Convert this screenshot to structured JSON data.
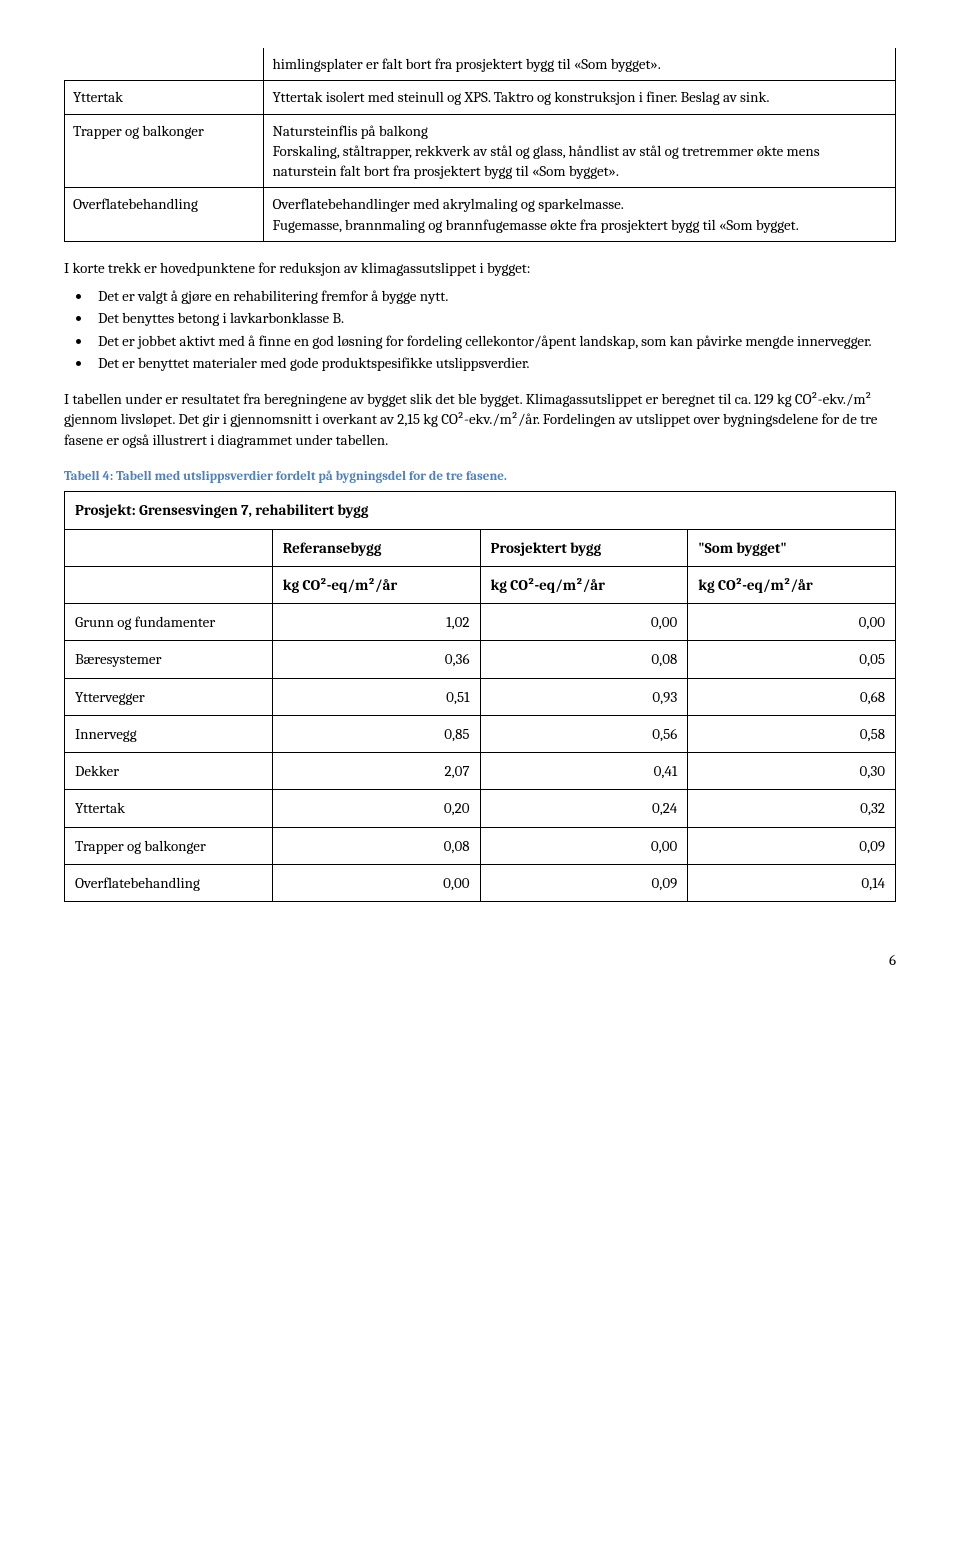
{
  "topTable": {
    "row0_desc": "himlingsplater er falt bort fra prosjektert bygg til «Som bygget».",
    "rows": [
      {
        "label": "Yttertak",
        "desc": "Yttertak isolert med steinull og XPS. Taktro og konstruksjon i finer. Beslag av sink."
      },
      {
        "label": "Trapper og balkonger",
        "desc": "Natursteinflis på balkong\nForskaling, ståltrapper, rekkverk av stål og glass, håndlist av stål og tretremmer økte mens naturstein falt bort fra prosjektert bygg til «Som bygget»."
      },
      {
        "label": "Overflatebehandling",
        "desc": "Overflatebehandlinger med akrylmaling og sparkelmasse.\nFugemasse, brannmaling og brannfugemasse økte fra prosjektert bygg til «Som bygget."
      }
    ]
  },
  "intro": "I korte trekk er hovedpunktene for reduksjon av klimagassutslippet i bygget:",
  "bullets": [
    "Det er valgt å gjøre en rehabilitering fremfor å bygge nytt.",
    "Det benyttes betong i lavkarbonklasse B.",
    "Det er jobbet aktivt med å finne en god løsning for fordeling cellekontor/åpent landskap, som kan påvirke mengde innervegger.",
    "Det er benyttet materialer med gode produktspesifikke utslippsverdier."
  ],
  "para2": "I tabellen under er resultatet fra beregningene av bygget slik det ble bygget. Klimagassutslippet er beregnet til ca. 129 kg CO²-ekv./m² gjennom livsløpet. Det gir i gjennomsnitt i overkant av 2,15 kg CO²-ekv./m²/år. Fordelingen av utslippet over bygningsdelene for de tre fasene er også illustrert i diagrammet under tabellen.",
  "caption": "Tabell 4: Tabell med utslippsverdier fordelt på bygningsdel for de tre fasene.",
  "dataTable": {
    "title": "Prosjekt: Grensesvingen 7, rehabilitert bygg",
    "headers": [
      "",
      "Referansebygg",
      "Prosjektert bygg",
      "\"Som bygget\""
    ],
    "units": [
      "",
      "kg CO²-eq/m²/år",
      "kg CO²-eq/m²/år",
      "kg CO²-eq/m²/år"
    ],
    "rows": [
      {
        "label": "Grunn og fundamenter",
        "v": [
          "1,02",
          "0,00",
          "0,00"
        ]
      },
      {
        "label": "Bæresystemer",
        "v": [
          "0,36",
          "0,08",
          "0,05"
        ]
      },
      {
        "label": "Yttervegger",
        "v": [
          "0,51",
          "0,93",
          "0,68"
        ]
      },
      {
        "label": "Innervegg",
        "v": [
          "0,85",
          "0,56",
          "0,58"
        ]
      },
      {
        "label": "Dekker",
        "v": [
          "2,07",
          "0,41",
          "0,30"
        ]
      },
      {
        "label": "Yttertak",
        "v": [
          "0,20",
          "0,24",
          "0,32"
        ]
      },
      {
        "label": "Trapper og balkonger",
        "v": [
          "0,08",
          "0,00",
          "0,09"
        ]
      },
      {
        "label": "Overflatebehandling",
        "v": [
          "0,00",
          "0,09",
          "0,14"
        ]
      }
    ]
  },
  "pageNumber": "6"
}
